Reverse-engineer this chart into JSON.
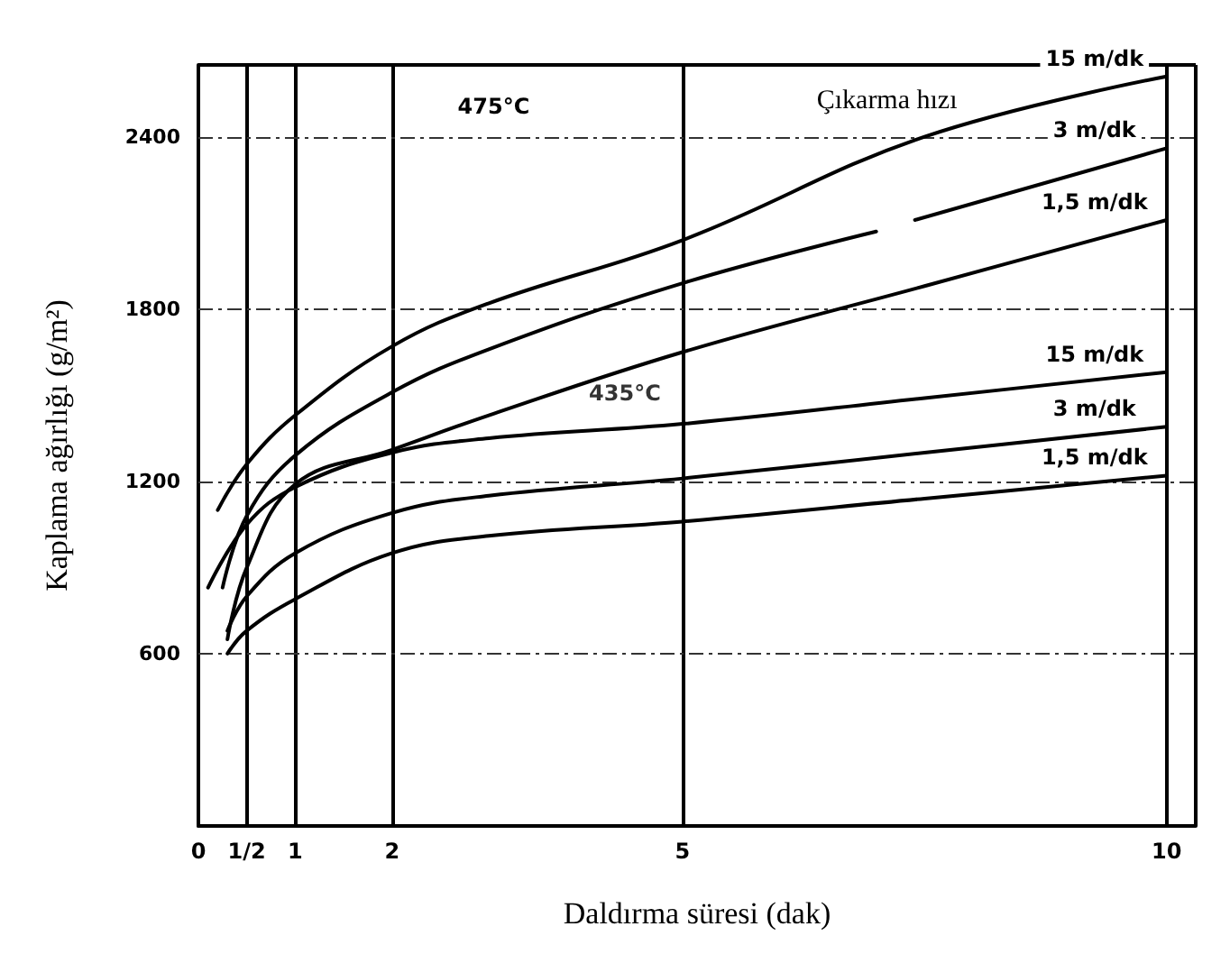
{
  "chart_data": {
    "type": "line",
    "xlabel": "Daldırma süresi (dak)",
    "ylabel": "Kaplama ağırlığı (g/m²)",
    "xlim": [
      0,
      10.3
    ],
    "xticks": [
      0,
      {
        "value": 0.5,
        "label": "1/2"
      },
      1,
      2,
      5,
      10
    ],
    "ylim": [
      0,
      2650
    ],
    "yticks": [
      {
        "value": 0,
        "label": null
      },
      600,
      1200,
      1800,
      2400
    ],
    "grid": true,
    "legend": false,
    "marker": "none",
    "line_style": "solid",
    "annotations": [
      "475°C",
      "Çıkarma hızı",
      {
        "text": "435°C",
        "x": 5,
        "y": 1400
      }
    ],
    "series": [
      {
        "name": "15 m/dk",
        "color": "#000000",
        "x": [
          0.2,
          0.5,
          1,
          2,
          3,
          5,
          7.5,
          10
        ],
        "values": [
          1100,
          1260,
          1430,
          1670,
          1820,
          2040,
          2400,
          2610
        ]
      },
      {
        "name": "3 m/dk",
        "color": "#000000",
        "x": [
          0.25,
          0.5,
          1,
          2,
          3,
          5,
          7,
          7.2,
          7.4,
          10
        ],
        "values": [
          830,
          1080,
          1290,
          1510,
          1660,
          1890,
          2070,
          null,
          2110,
          2360
        ]
      },
      {
        "name": "1,5 m/dk",
        "color": "#000000",
        "x": [
          0.3,
          0.5,
          1,
          2,
          3,
          5,
          7.5,
          10
        ],
        "values": [
          650,
          900,
          1190,
          1310,
          1430,
          1650,
          1880,
          2110
        ]
      },
      {
        "name": "15 m/dk",
        "color": "#000000",
        "x": [
          0.1,
          0.5,
          1,
          2,
          3,
          5,
          7.5,
          10
        ],
        "values": [
          830,
          1050,
          1180,
          1300,
          1350,
          1400,
          1490,
          1580
        ]
      },
      {
        "name": "3 m/dk",
        "color": "#000000",
        "x": [
          0.3,
          0.5,
          1,
          2,
          3,
          5,
          7.5,
          10
        ],
        "values": [
          680,
          800,
          950,
          1090,
          1150,
          1210,
          1300,
          1390
        ]
      },
      {
        "name": "1,5 m/dk",
        "color": "#000000",
        "x": [
          0.3,
          0.5,
          1,
          2,
          3,
          5,
          7.5,
          10
        ],
        "values": [
          600,
          680,
          790,
          950,
          1010,
          1060,
          1140,
          1220
        ]
      }
    ]
  }
}
